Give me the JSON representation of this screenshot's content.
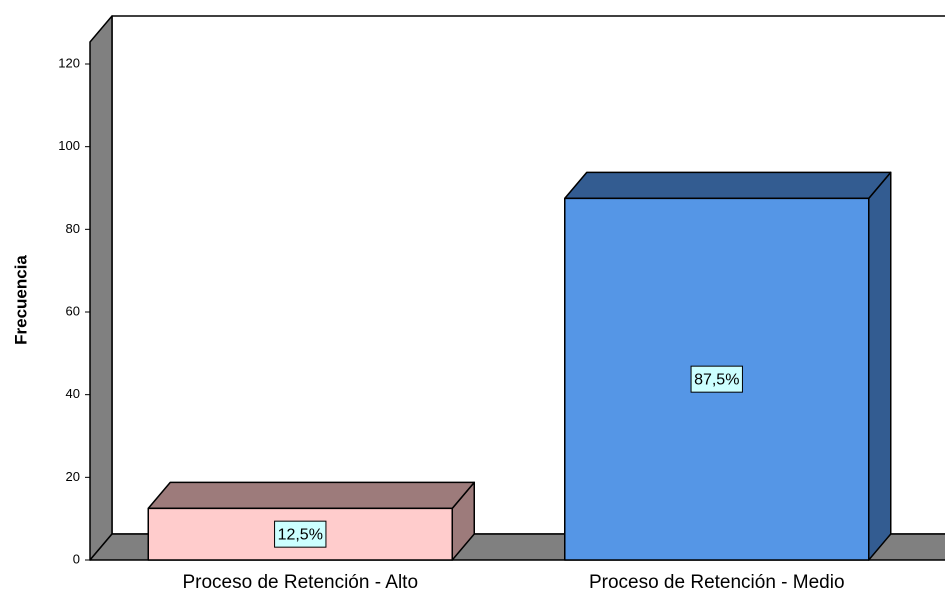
{
  "chart_data": {
    "type": "bar3d",
    "y_label": "Frecuencia",
    "categories": [
      "Proceso de Retención - Alto",
      "Proceso de Retención - Medio"
    ],
    "values": [
      12.5,
      87.5
    ],
    "value_labels": [
      "12,5%",
      "87,5%"
    ],
    "colors": [
      {
        "front": "#ffcccc",
        "side": "#9d7b7b"
      },
      {
        "front": "#5596e6",
        "side": "#335c91"
      }
    ],
    "ylim": [
      0,
      120
    ],
    "yticks": [
      0,
      20,
      40,
      60,
      80,
      100,
      120
    ]
  }
}
